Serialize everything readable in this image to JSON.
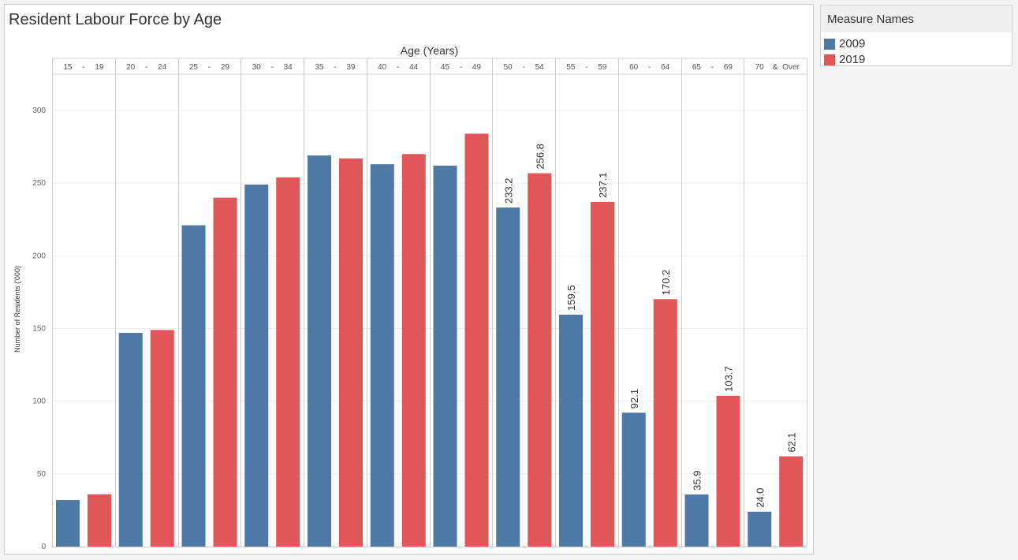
{
  "colors": {
    "series_2009": "#4e79a7",
    "series_2019": "#e15759"
  },
  "legend": {
    "title": "Measure Names",
    "items": [
      {
        "label": "2009",
        "color": "#4e79a7"
      },
      {
        "label": "2019",
        "color": "#e15759"
      }
    ]
  },
  "chart_data": {
    "type": "bar",
    "title": "Resident Labour Force by Age",
    "xlabel": "Age (Years)",
    "ylabel": "Number of Residents ('000)",
    "ylim": [
      0,
      320
    ],
    "yticks": [
      0,
      50,
      100,
      150,
      200,
      250,
      300
    ],
    "grid": true,
    "legend_position": "right",
    "categories": [
      [
        "15",
        "-",
        "19"
      ],
      [
        "20",
        "-",
        "24"
      ],
      [
        "25",
        "-",
        "29"
      ],
      [
        "30",
        "-",
        "34"
      ],
      [
        "35",
        "-",
        "39"
      ],
      [
        "40",
        "-",
        "44"
      ],
      [
        "45",
        "-",
        "49"
      ],
      [
        "50",
        "-",
        "54"
      ],
      [
        "55",
        "-",
        "59"
      ],
      [
        "60",
        "-",
        "64"
      ],
      [
        "65",
        "-",
        "69"
      ],
      [
        "70",
        "&",
        "Over"
      ]
    ],
    "series": [
      {
        "name": "2009",
        "color": "#4e79a7",
        "values": [
          32,
          147,
          221,
          249,
          269,
          263,
          262,
          233.2,
          159.5,
          92.1,
          35.9,
          24.0
        ],
        "labels": [
          null,
          null,
          null,
          null,
          null,
          null,
          null,
          "233.2",
          "159.5",
          "92.1",
          "35.9",
          "24.0"
        ]
      },
      {
        "name": "2019",
        "color": "#e15759",
        "values": [
          36,
          149,
          240,
          254,
          267,
          270,
          284,
          256.8,
          237.1,
          170.2,
          103.7,
          62.1
        ],
        "labels": [
          null,
          null,
          null,
          null,
          null,
          null,
          null,
          "256.8",
          "237.1",
          "170.2",
          "103.7",
          "62.1"
        ]
      }
    ]
  }
}
